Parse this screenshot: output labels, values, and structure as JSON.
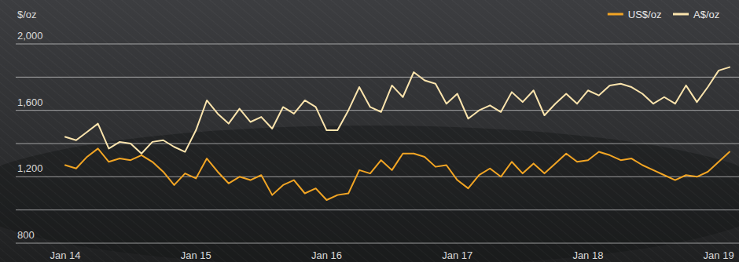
{
  "chart_data": {
    "type": "line",
    "y_label": "$/oz",
    "categories": [
      "Jan 14",
      null,
      null,
      null,
      null,
      null,
      null,
      null,
      null,
      null,
      null,
      null,
      "Jan 15",
      null,
      null,
      null,
      null,
      null,
      null,
      null,
      null,
      null,
      null,
      null,
      "Jan 16",
      null,
      null,
      null,
      null,
      null,
      null,
      null,
      null,
      null,
      null,
      null,
      "Jan 17",
      null,
      null,
      null,
      null,
      null,
      null,
      null,
      null,
      null,
      null,
      null,
      "Jan 18",
      null,
      null,
      null,
      null,
      null,
      null,
      null,
      null,
      null,
      null,
      null,
      "Jan 19",
      null
    ],
    "series": [
      {
        "name": "US$/oz",
        "color": "#f2a524",
        "values": [
          1270,
          1250,
          1320,
          1370,
          1290,
          1310,
          1300,
          1330,
          1290,
          1230,
          1150,
          1220,
          1190,
          1310,
          1230,
          1160,
          1200,
          1180,
          1210,
          1090,
          1150,
          1180,
          1100,
          1130,
          1060,
          1090,
          1100,
          1240,
          1220,
          1300,
          1240,
          1340,
          1340,
          1320,
          1260,
          1270,
          1180,
          1130,
          1210,
          1250,
          1200,
          1290,
          1220,
          1280,
          1220,
          1280,
          1340,
          1290,
          1300,
          1350,
          1330,
          1300,
          1310,
          1270,
          1240,
          1210,
          1180,
          1210,
          1200,
          1230,
          1290,
          1350
        ]
      },
      {
        "name": "A$/oz",
        "color": "#fbe4ad",
        "values": [
          1440,
          1420,
          1470,
          1520,
          1370,
          1410,
          1400,
          1340,
          1410,
          1420,
          1380,
          1350,
          1480,
          1660,
          1580,
          1520,
          1610,
          1530,
          1560,
          1490,
          1620,
          1580,
          1660,
          1620,
          1480,
          1480,
          1600,
          1740,
          1620,
          1590,
          1750,
          1680,
          1830,
          1780,
          1760,
          1640,
          1700,
          1550,
          1600,
          1630,
          1590,
          1710,
          1650,
          1720,
          1570,
          1640,
          1700,
          1640,
          1720,
          1690,
          1750,
          1760,
          1740,
          1700,
          1640,
          1680,
          1640,
          1750,
          1650,
          1740,
          1840,
          1860
        ]
      }
    ],
    "ylim": [
      800,
      2000
    ],
    "yticks": [
      800,
      {
        "value": 1000,
        "label": null
      },
      {
        "value": 1200,
        "label": "1,200"
      },
      {
        "value": 1400,
        "label": null
      },
      {
        "value": 1600,
        "label": "1,600"
      },
      {
        "value": 1800,
        "label": null
      },
      {
        "value": 2000,
        "label": "2,000"
      }
    ],
    "grid": true,
    "legend": "top-right"
  }
}
